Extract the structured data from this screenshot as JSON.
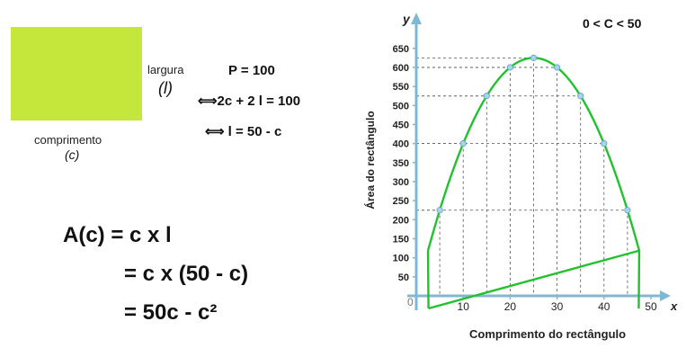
{
  "rect": {
    "width_label": "largura",
    "width_symbol": "l",
    "length_label": "comprimento",
    "length_symbol": "c"
  },
  "perimeter": {
    "line1": "P = 100",
    "line2": "⟺2c + 2 l = 100",
    "line3": "⟺ l = 50 - c"
  },
  "area": {
    "line1": "A(c) = c x l",
    "line2": "= c x (50 - c)",
    "line3": "= 50c - c²"
  },
  "colors": {
    "rect_fill": "#c5e63a",
    "curve": "#22c22e",
    "axis": "#7fb8d6",
    "point": "#a8d4e6"
  },
  "chart_data": {
    "type": "line",
    "condition": "0 < C < 50",
    "xlabel": "Comprimento do rectângulo",
    "ylabel": "Área do rectângulo",
    "x_axis_letter": "x",
    "y_axis_letter": "y",
    "origin_label": "0",
    "xlim": [
      0,
      50
    ],
    "ylim": [
      0,
      650
    ],
    "x_ticks": [
      10,
      20,
      30,
      40,
      50
    ],
    "y_ticks": [
      50,
      100,
      150,
      200,
      250,
      300,
      350,
      400,
      450,
      500,
      550,
      600,
      650
    ],
    "function": "y = 50x - x^2",
    "points": [
      {
        "x": 5,
        "y": 225
      },
      {
        "x": 10,
        "y": 400
      },
      {
        "x": 15,
        "y": 525
      },
      {
        "x": 20,
        "y": 600
      },
      {
        "x": 25,
        "y": 625
      },
      {
        "x": 30,
        "y": 600
      },
      {
        "x": 35,
        "y": 525
      },
      {
        "x": 40,
        "y": 400
      },
      {
        "x": 45,
        "y": 225
      }
    ]
  }
}
